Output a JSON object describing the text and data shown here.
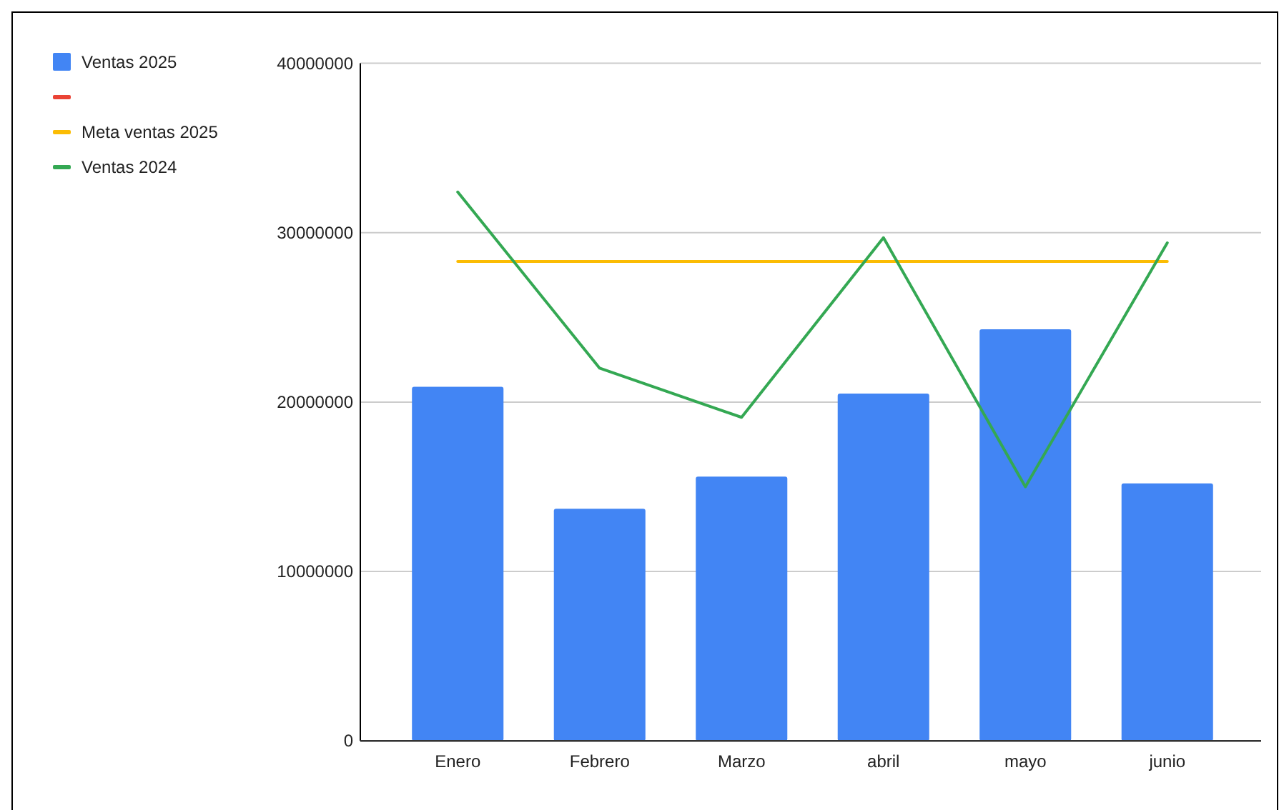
{
  "chart_data": {
    "type": "bar",
    "categories": [
      "Enero",
      "Febrero",
      "Marzo",
      "abril",
      "mayo",
      "junio"
    ],
    "series": [
      {
        "name": "Ventas 2025",
        "color": "#4285f4",
        "values": [
          20900000,
          13700000,
          15600000,
          20500000,
          24300000,
          15200000
        ]
      },
      {
        "type": "line",
        "color": "#ea4335",
        "values": [
          null,
          null,
          null,
          null,
          null,
          null
        ]
      },
      {
        "name": "Meta ventas 2025",
        "type": "line",
        "color": "#fbbc04",
        "values": [
          28300000,
          28300000,
          28300000,
          28300000,
          28300000,
          28300000
        ]
      },
      {
        "name": "Ventas 2024",
        "type": "line",
        "color": "#34a853",
        "values": [
          32400000,
          22000000,
          19100000,
          29700000,
          15000000,
          29400000
        ]
      }
    ],
    "ylim": [
      0,
      40000000
    ],
    "yticks": [
      0,
      10000000,
      20000000,
      30000000,
      40000000
    ],
    "grid": "y",
    "legend": "left"
  }
}
